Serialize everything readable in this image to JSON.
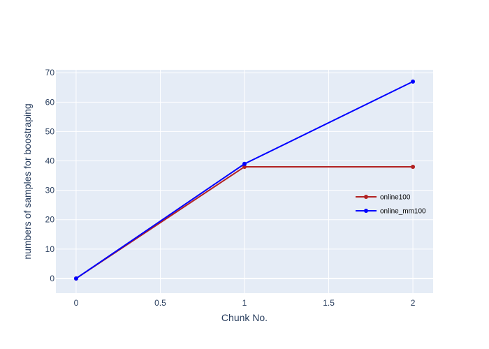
{
  "chart_data": {
    "type": "line",
    "title": "",
    "xlabel": "Chunk No.",
    "ylabel": "numbers of samples for boostraping",
    "xlim": [
      -0.12,
      2.12
    ],
    "ylim": [
      -5,
      71
    ],
    "x_ticks": [
      0,
      0.5,
      1,
      1.5,
      2
    ],
    "x_tick_labels": [
      "0",
      "0.5",
      "1",
      "1.5",
      "2"
    ],
    "y_ticks": [
      0,
      10,
      20,
      30,
      40,
      50,
      60,
      70
    ],
    "y_tick_labels": [
      "0",
      "10",
      "20",
      "30",
      "40",
      "50",
      "60",
      "70"
    ],
    "grid": true,
    "legend_position": "right",
    "plot_background": "#e5ecf6",
    "series": [
      {
        "name": "online100",
        "color": "#b22222",
        "x": [
          0,
          1,
          2
        ],
        "y": [
          0,
          38,
          38
        ]
      },
      {
        "name": "online_mm100",
        "color": "#0000ff",
        "x": [
          0,
          1,
          2
        ],
        "y": [
          0,
          39,
          67
        ]
      }
    ]
  }
}
